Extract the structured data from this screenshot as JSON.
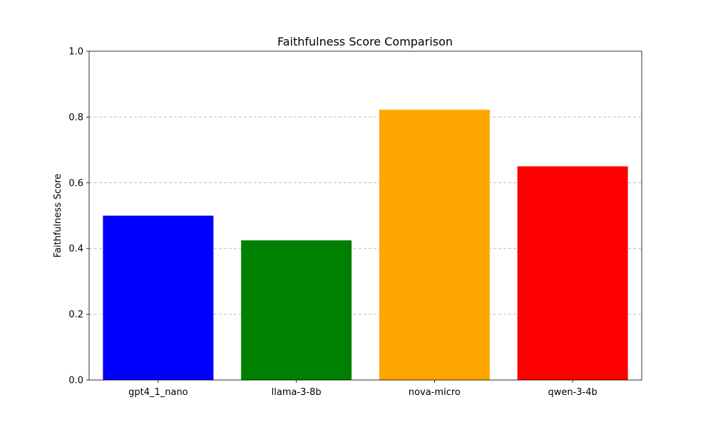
{
  "chart_data": {
    "type": "bar",
    "title": "Faithfulness Score Comparison",
    "xlabel": "",
    "ylabel": "Faithfulness Score",
    "categories": [
      "gpt4_1_nano",
      "llama-3-8b",
      "nova-micro",
      "qwen-3-4b"
    ],
    "values": [
      0.5,
      0.425,
      0.822,
      0.65
    ],
    "colors": [
      "#0000ff",
      "#008000",
      "#ffa500",
      "#ff0000"
    ],
    "ylim": [
      0,
      1.0
    ],
    "yticks": [
      "0.0",
      "0.2",
      "0.4",
      "0.6",
      "0.8",
      "1.0"
    ],
    "grid": "y-dashed"
  }
}
